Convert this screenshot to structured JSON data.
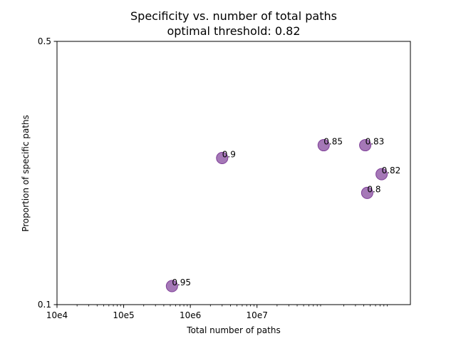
{
  "chart_data": {
    "type": "scatter",
    "title": "Specificity vs. number of total paths",
    "subtitle": "optimal threshold: 0.82",
    "xlabel": "Total number of paths",
    "ylabel": "Proportion of specific paths",
    "x_scale": "log",
    "y_scale": "log",
    "xlim": [
      10000,
      2000000000
    ],
    "ylim": [
      0.1,
      0.5
    ],
    "x_ticks": [
      {
        "value": 10000,
        "label": "10e4"
      },
      {
        "value": 100000,
        "label": "10e5"
      },
      {
        "value": 1000000,
        "label": "10e6"
      },
      {
        "value": 10000000,
        "label": "10e7"
      }
    ],
    "y_ticks": [
      {
        "value": 0.1,
        "label": "0.1"
      },
      {
        "value": 0.5,
        "label": "0.5"
      }
    ],
    "grid": false,
    "legend": "none",
    "marker_color": "#7f3f98",
    "points": [
      {
        "x": 530000,
        "y": 0.112,
        "label": "0.95"
      },
      {
        "x": 3000000,
        "y": 0.245,
        "label": "0.9"
      },
      {
        "x": 100000000,
        "y": 0.265,
        "label": "0.85"
      },
      {
        "x": 420000000,
        "y": 0.265,
        "label": "0.83"
      },
      {
        "x": 740000000,
        "y": 0.222,
        "label": "0.82"
      },
      {
        "x": 450000000,
        "y": 0.198,
        "label": "0.8"
      }
    ]
  }
}
